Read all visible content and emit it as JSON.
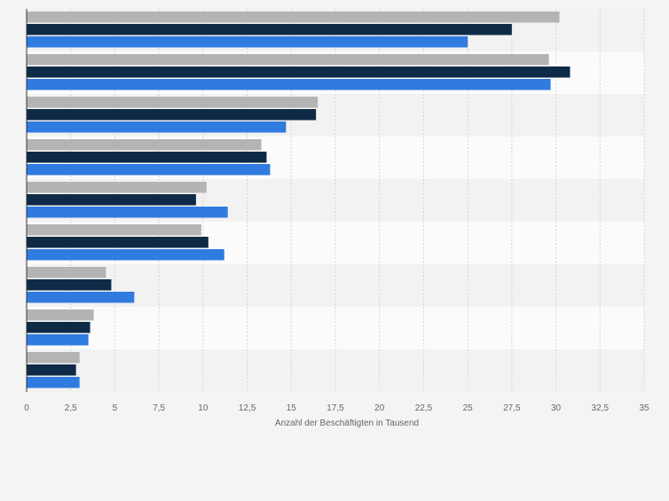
{
  "chart_data": {
    "type": "bar",
    "orientation": "horizontal",
    "categories": [
      "",
      "",
      "",
      "",
      "",
      "",
      "",
      "",
      ""
    ],
    "series": [
      {
        "name": "",
        "color": "#b4b4b4",
        "values": [
          30.2,
          29.6,
          16.5,
          13.3,
          10.2,
          9.9,
          4.5,
          3.8,
          3.0
        ]
      },
      {
        "name": "",
        "color": "#0e2a47",
        "values": [
          27.5,
          30.8,
          16.4,
          13.6,
          9.6,
          10.3,
          4.8,
          3.6,
          2.8
        ]
      },
      {
        "name": "",
        "color": "#2f7be0",
        "values": [
          25.0,
          29.7,
          14.7,
          13.8,
          11.4,
          11.2,
          6.1,
          3.5,
          3.0
        ]
      }
    ],
    "xlim": [
      0,
      35
    ],
    "xticks": [
      "0",
      "2,5",
      "5",
      "7,5",
      "10",
      "12,5",
      "15",
      "17,5",
      "20",
      "22,5",
      "25",
      "27,5",
      "30",
      "32,5",
      "35"
    ],
    "xlabel": "Anzahl der Beschäftigten in Tausend",
    "ylabel": "",
    "title": "",
    "grid": "vertical dashed",
    "band_colors": [
      "#f2f2f2",
      "#fbfbfb"
    ]
  }
}
